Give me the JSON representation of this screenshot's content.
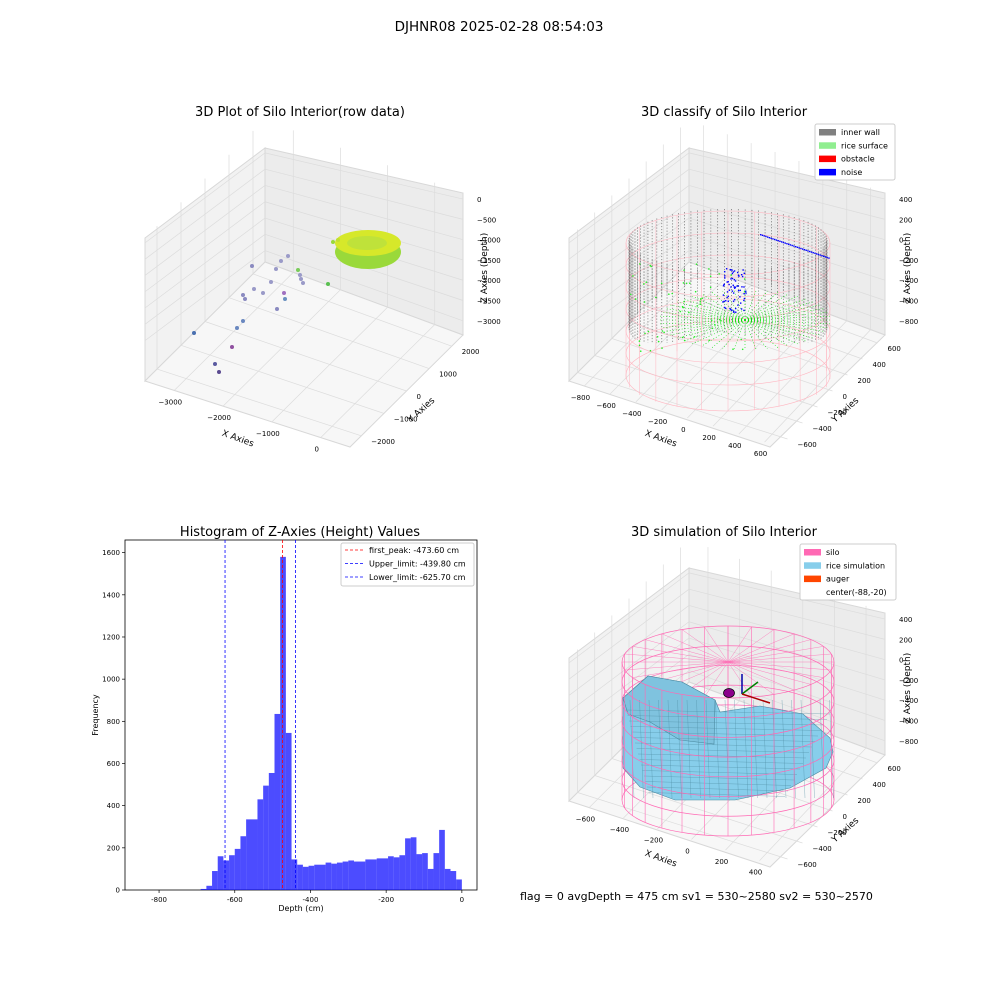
{
  "suptitle": "DJHNR08 2025-02-28 08:54:03",
  "status_line": "flag = 0     avgDepth = 475 cm  sv1 = 530~2580  sv2 = 530~2570",
  "chart_data": [
    {
      "type": "scatter3d",
      "title": "3D Plot of Silo Interior(row data)",
      "xlabel": "X Axies",
      "ylabel": "Y Axies",
      "zlabel": "Z Axies (Depth)",
      "x_ticks": [
        "−3000",
        "−2000",
        "−1000",
        "0"
      ],
      "y_ticks": [
        "−2000",
        "−1000",
        "0",
        "1000",
        "2000"
      ],
      "z_ticks": [
        "0",
        "−500",
        "−1000",
        "−1500",
        "−2000",
        "−2500",
        "−3000"
      ],
      "grid": true
    },
    {
      "type": "scatter3d",
      "title": "3D classify of Silo Interior",
      "xlabel": "X Axies",
      "ylabel": "Y Axies",
      "zlabel": "Z Axies (Depth)",
      "x_ticks": [
        "−800",
        "−600",
        "−400",
        "−200",
        "0",
        "200",
        "400",
        "600"
      ],
      "y_ticks": [
        "−600",
        "−400",
        "−200",
        "0",
        "200",
        "400",
        "600"
      ],
      "z_ticks": [
        "400",
        "200",
        "0",
        "−200",
        "−400",
        "−600",
        "−800"
      ],
      "legend": [
        {
          "label": "inner wall",
          "color": "#808080"
        },
        {
          "label": "rice surface",
          "color": "#90ee90"
        },
        {
          "label": "obstacle",
          "color": "#ff0000"
        },
        {
          "label": "noise",
          "color": "#0000ff"
        }
      ],
      "legend_position": "top-right",
      "grid": true
    },
    {
      "type": "histogram",
      "title": "Histogram of Z-Axies (Height) Values",
      "xlabel": "Depth (cm)",
      "ylabel": "Frequency",
      "xlim": [
        -890,
        40
      ],
      "ylim": [
        0,
        1660
      ],
      "x_ticks": [
        -800,
        -600,
        -400,
        -200,
        0
      ],
      "y_ticks": [
        0,
        200,
        400,
        600,
        800,
        1000,
        1200,
        1400,
        1600
      ],
      "bar_color": "#0000ff",
      "bins": [
        {
          "x0": -690,
          "x1": -675,
          "count": 5
        },
        {
          "x0": -675,
          "x1": -660,
          "count": 20
        },
        {
          "x0": -660,
          "x1": -645,
          "count": 90
        },
        {
          "x0": -645,
          "x1": -630,
          "count": 160
        },
        {
          "x0": -630,
          "x1": -615,
          "count": 140
        },
        {
          "x0": -615,
          "x1": -600,
          "count": 165
        },
        {
          "x0": -600,
          "x1": -585,
          "count": 195
        },
        {
          "x0": -585,
          "x1": -570,
          "count": 255
        },
        {
          "x0": -570,
          "x1": -540,
          "count": 335
        },
        {
          "x0": -540,
          "x1": -525,
          "count": 430
        },
        {
          "x0": -525,
          "x1": -510,
          "count": 495
        },
        {
          "x0": -510,
          "x1": -495,
          "count": 555
        },
        {
          "x0": -495,
          "x1": -480,
          "count": 835
        },
        {
          "x0": -480,
          "x1": -465,
          "count": 1580
        },
        {
          "x0": -465,
          "x1": -450,
          "count": 745
        },
        {
          "x0": -450,
          "x1": -435,
          "count": 145
        },
        {
          "x0": -435,
          "x1": -420,
          "count": 120
        },
        {
          "x0": -420,
          "x1": -405,
          "count": 110
        },
        {
          "x0": -405,
          "x1": -390,
          "count": 115
        },
        {
          "x0": -390,
          "x1": -360,
          "count": 120
        },
        {
          "x0": -360,
          "x1": -345,
          "count": 130
        },
        {
          "x0": -345,
          "x1": -330,
          "count": 125
        },
        {
          "x0": -330,
          "x1": -315,
          "count": 130
        },
        {
          "x0": -315,
          "x1": -300,
          "count": 135
        },
        {
          "x0": -300,
          "x1": -285,
          "count": 140
        },
        {
          "x0": -285,
          "x1": -255,
          "count": 135
        },
        {
          "x0": -255,
          "x1": -225,
          "count": 145
        },
        {
          "x0": -225,
          "x1": -195,
          "count": 150
        },
        {
          "x0": -195,
          "x1": -180,
          "count": 160
        },
        {
          "x0": -180,
          "x1": -165,
          "count": 155
        },
        {
          "x0": -165,
          "x1": -150,
          "count": 165
        },
        {
          "x0": -150,
          "x1": -135,
          "count": 245
        },
        {
          "x0": -135,
          "x1": -120,
          "count": 250
        },
        {
          "x0": -120,
          "x1": -105,
          "count": 170
        },
        {
          "x0": -105,
          "x1": -90,
          "count": 175
        },
        {
          "x0": -90,
          "x1": -75,
          "count": 100
        },
        {
          "x0": -75,
          "x1": -60,
          "count": 175
        },
        {
          "x0": -60,
          "x1": -45,
          "count": 285
        },
        {
          "x0": -45,
          "x1": -30,
          "count": 100
        },
        {
          "x0": -30,
          "x1": -15,
          "count": 90
        },
        {
          "x0": -15,
          "x1": 0,
          "count": 50
        }
      ],
      "vlines": [
        {
          "x": -473.6,
          "color": "#ff0000",
          "label": "first_peak: -473.60 cm"
        },
        {
          "x": -439.8,
          "color": "#0000ff",
          "label": "Upper_limit: -439.80 cm"
        },
        {
          "x": -625.7,
          "color": "#0000ff",
          "label": "Lower_limit: -625.70 cm"
        }
      ],
      "legend_position": "top-right"
    },
    {
      "type": "surface3d",
      "title": "3D simulation of Silo Interior",
      "xlabel": "X Axies",
      "ylabel": "Y Axies",
      "zlabel": "Z Axies (Depth)",
      "x_ticks": [
        "−600",
        "−400",
        "−200",
        "0",
        "200",
        "400"
      ],
      "y_ticks": [
        "−600",
        "−400",
        "−200",
        "0",
        "200",
        "400",
        "600"
      ],
      "z_ticks": [
        "400",
        "200",
        "0",
        "−200",
        "−400",
        "−600",
        "−800"
      ],
      "legend": [
        {
          "label": "silo",
          "color": "#ff69b4"
        },
        {
          "label": "rice simulation",
          "color": "#87ceeb"
        },
        {
          "label": "auger",
          "color": "#ff4500"
        },
        {
          "label": "center(-88,-20)",
          "color": "none"
        }
      ],
      "legend_position": "top-right",
      "grid": true
    }
  ]
}
